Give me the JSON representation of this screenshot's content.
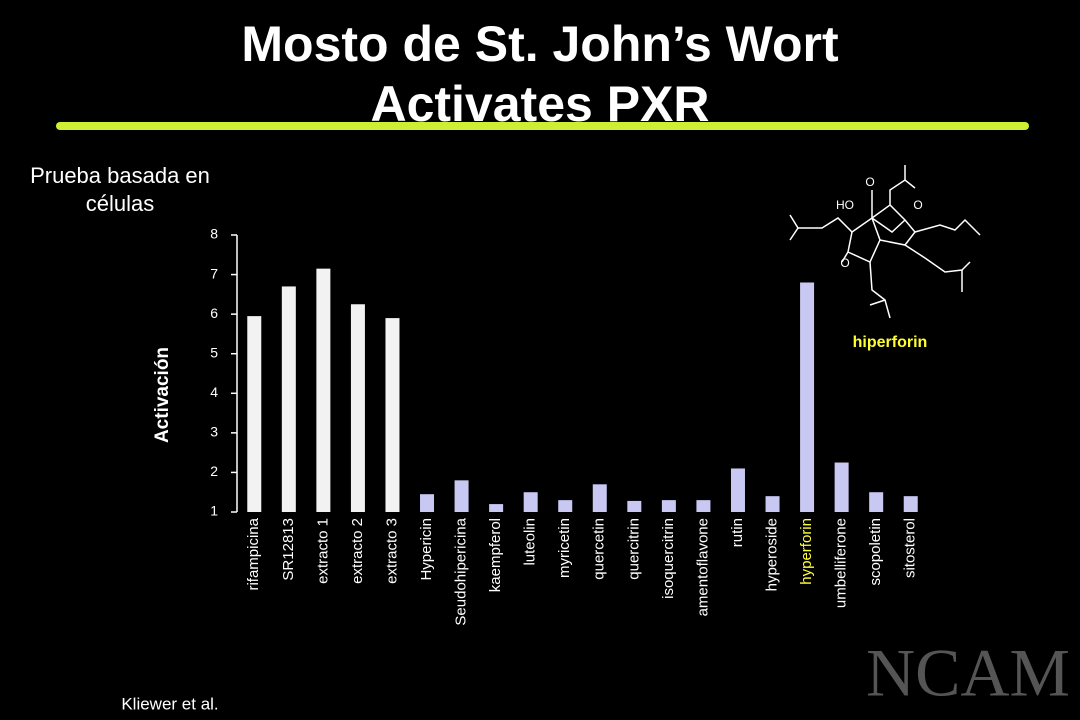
{
  "chart_data": {
    "type": "bar",
    "title": "Mosto de St. John’s Wort Activates PXR",
    "subtitle": "Prueba basada en células",
    "y_label": "Activación",
    "annotation": "hiperforin",
    "structure_atoms": [
      "O",
      "HO",
      "O",
      "O"
    ],
    "source": "Kliewer et al.",
    "logo": "NCAM",
    "categories": [
      "rifampicina",
      "SR12813",
      "extracto 1",
      "extracto 2",
      "extracto 3",
      "Hypericin",
      "Seudohipericina",
      "kaempferol",
      "luteolin",
      "myricetin",
      "quercetin",
      "quercitrin",
      "isoquercitrin",
      "amentoflavone",
      "rutin",
      "hyperoside",
      "hyperforin",
      "umbelliferone",
      "scopoletin",
      "sitosterol"
    ],
    "values": [
      5.95,
      6.7,
      7.15,
      6.25,
      5.9,
      1.45,
      1.8,
      1.2,
      1.5,
      1.3,
      1.7,
      1.28,
      1.3,
      1.3,
      2.1,
      1.4,
      6.8,
      2.25,
      1.5,
      1.4
    ],
    "colors": [
      "#f2f2f2",
      "#f2f2f2",
      "#f2f2f2",
      "#f2f2f2",
      "#f2f2f2",
      "#c8c8f2",
      "#c8c8f2",
      "#c8c8f2",
      "#c8c8f2",
      "#c8c8f2",
      "#c8c8f2",
      "#c8c8f2",
      "#c8c8f2",
      "#c8c8f2",
      "#c8c8f2",
      "#c8c8f2",
      "#c8c8f2",
      "#c8c8f2",
      "#c8c8f2",
      "#c8c8f2"
    ],
    "label_colors": [
      "#ffffff",
      "#ffffff",
      "#ffffff",
      "#ffffff",
      "#ffffff",
      "#ffffff",
      "#ffffff",
      "#ffffff",
      "#ffffff",
      "#ffffff",
      "#ffffff",
      "#ffffff",
      "#ffffff",
      "#ffffff",
      "#ffffff",
      "#ffffff",
      "#ffff33",
      "#ffffff",
      "#ffffff",
      "#ffffff"
    ],
    "ylim": [
      1,
      8
    ],
    "yticks": [
      1,
      2,
      3,
      4,
      5,
      6,
      7,
      8
    ]
  }
}
